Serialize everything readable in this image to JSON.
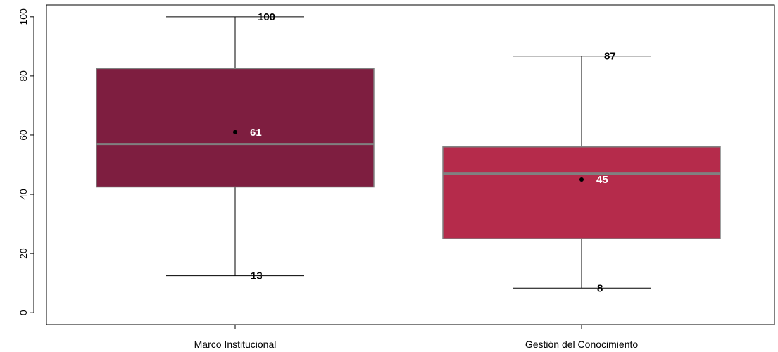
{
  "chart_data": {
    "type": "boxplot",
    "title": "",
    "xlabel": "",
    "ylabel": "",
    "ylim": [
      -4,
      104
    ],
    "yticks": [
      0,
      20,
      40,
      60,
      80,
      100
    ],
    "grid": false,
    "legend": "none",
    "categories": [
      "Marco Institucional",
      "Gestión del Conocimiento"
    ],
    "boxes": [
      {
        "category": "Marco Institucional",
        "whisker_low": 12.5,
        "q1": 42.5,
        "median": 57,
        "q3": 82.5,
        "whisker_high": 100,
        "mean": 61,
        "label_min": "13",
        "label_mean": "61",
        "label_max": "100",
        "color": "#7E1E40"
      },
      {
        "category": "Gestión del Conocimiento",
        "whisker_low": 8.3,
        "q1": 25,
        "median": 47,
        "q3": 56,
        "whisker_high": 86.7,
        "mean": 45,
        "label_min": "8",
        "label_mean": "45",
        "label_max": "87",
        "color": "#B52B4B"
      }
    ],
    "colors": {
      "median_line": "#808080",
      "box_border": "#808080",
      "whisker": "#000000",
      "mean_label": "#ffffff",
      "extreme_label": "#000000"
    }
  }
}
